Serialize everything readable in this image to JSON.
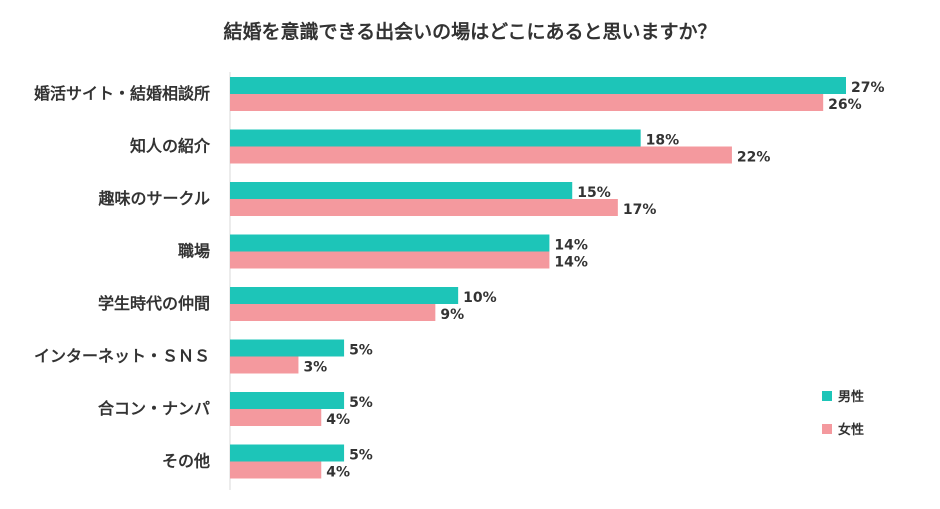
{
  "chart_data": {
    "type": "bar",
    "orientation": "horizontal",
    "title": "結婚を意識できる出会いの場はどこにあると思いますか？",
    "categories": [
      "婚活サイト・結婚相談所",
      "知人の紹介",
      "趣味のサークル",
      "職場",
      "学生時代の仲間",
      "インターネット・ＳＮＳ",
      "合コン・ナンパ",
      "その他"
    ],
    "series": [
      {
        "name": "男性",
        "color": "#1DC5B8",
        "values": [
          27,
          18,
          15,
          14,
          10,
          5,
          5,
          5
        ],
        "labels": [
          "27%",
          "18%",
          "15%",
          "14%",
          "10%",
          "5%",
          "5%",
          "5%"
        ]
      },
      {
        "name": "女性",
        "color": "#F4999E",
        "values": [
          26,
          22,
          17,
          14,
          9,
          3,
          4,
          4
        ],
        "labels": [
          "26%",
          "22%",
          "17%",
          "14%",
          "9%",
          "3%",
          "4%",
          "4%"
        ]
      }
    ],
    "value_unit": "%",
    "xlim": [
      0,
      30
    ],
    "grid": false,
    "legend_position": "bottom-right"
  }
}
